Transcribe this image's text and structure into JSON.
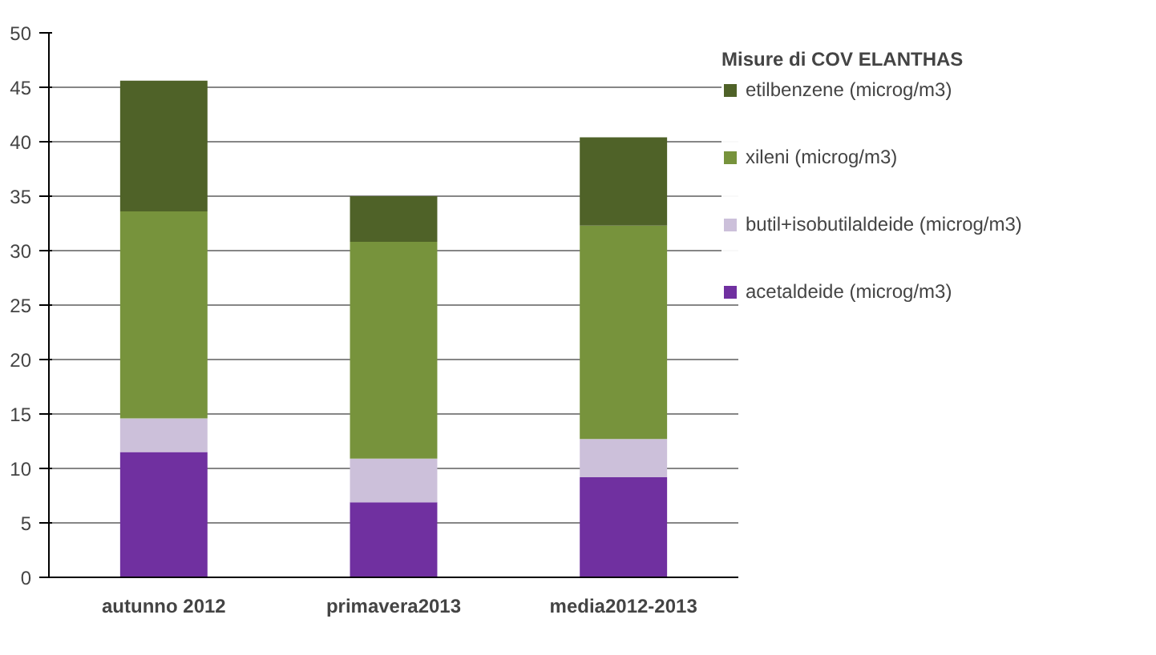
{
  "chart_data": {
    "type": "bar",
    "stacked": true,
    "legend_title": "Misure di COV ELANTHAS",
    "categories": [
      "autunno 2012",
      "primavera2013",
      "media2012-2013"
    ],
    "series": [
      {
        "name": "acetaldeide (microg/m3)",
        "color": "#7030a0",
        "values": [
          11.5,
          6.9,
          9.2
        ]
      },
      {
        "name": "butil+isobutilaldeide (microg/m3)",
        "color": "#ccc0da",
        "values": [
          3.1,
          4.0,
          3.5
        ]
      },
      {
        "name": "xileni (microg/m3)",
        "color": "#77933c",
        "values": [
          19.0,
          19.9,
          19.6
        ]
      },
      {
        "name": "etilbenzene (microg/m3)",
        "color": "#4f6228",
        "values": [
          12.0,
          4.2,
          8.1
        ]
      }
    ],
    "ylim": [
      0,
      50
    ],
    "yticks": [
      0,
      5,
      10,
      15,
      20,
      25,
      30,
      35,
      40,
      45,
      50
    ],
    "grid": "y",
    "legend": "right"
  }
}
